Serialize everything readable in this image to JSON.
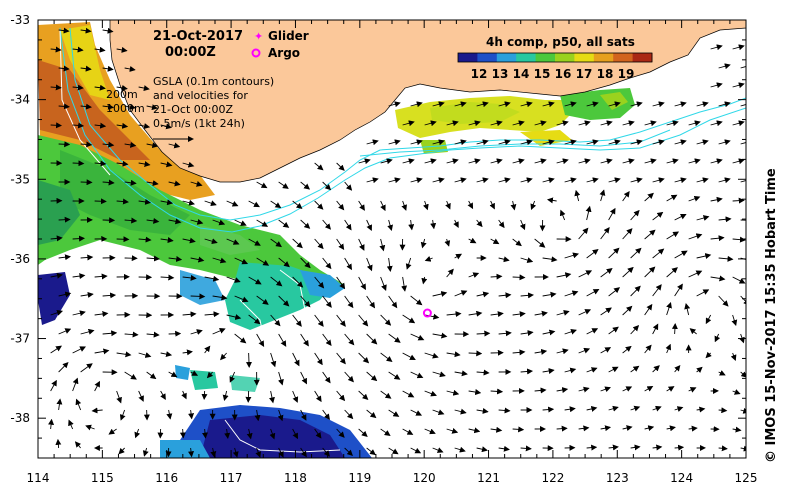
{
  "title": {
    "date": "21-Oct-2017",
    "time": "00:00Z"
  },
  "legend": {
    "glider_label": "Glider",
    "argo_label": "Argo",
    "glider_color": "#ff00ff",
    "argo_color": "#ff00ff"
  },
  "annotation": {
    "line1": "GSLA (0.1m contours)",
    "line2": "and velocities for",
    "line3": "21-Oct 00:00Z",
    "line4": "0.5m/s (1kt 24h)"
  },
  "depth_labels": {
    "shallow": "200m",
    "deep": "1000m"
  },
  "colorbar": {
    "title": "4h comp, p50, all sats",
    "ticks": [
      "12",
      "13",
      "14",
      "15",
      "16",
      "17",
      "18",
      "19"
    ],
    "colors": [
      "#1a1a8c",
      "#1e50c8",
      "#2aa0dc",
      "#28c8a0",
      "#4cc83c",
      "#9ad21e",
      "#e6dc14",
      "#e6a01e",
      "#d2641e",
      "#aa2814"
    ]
  },
  "credit": "© IMOS 15-Nov-2017 15:35 Hobart Time",
  "axes": {
    "x_ticks": [
      "114",
      "115",
      "116",
      "117",
      "118",
      "119",
      "120",
      "121",
      "122",
      "123",
      "124",
      "125"
    ],
    "y_ticks": [
      "-33",
      "-34",
      "-35",
      "-36",
      "-37",
      "-38"
    ],
    "x_range": [
      114,
      125
    ],
    "y_range": [
      -38.5,
      -33
    ]
  },
  "colors": {
    "land": "#fbc89a",
    "cyan_contour": "#30d8e8",
    "arrow": "#000000",
    "argo_marker": "#ff00ff"
  },
  "argo_position": {
    "lon": 120.05,
    "lat": -36.68
  }
}
